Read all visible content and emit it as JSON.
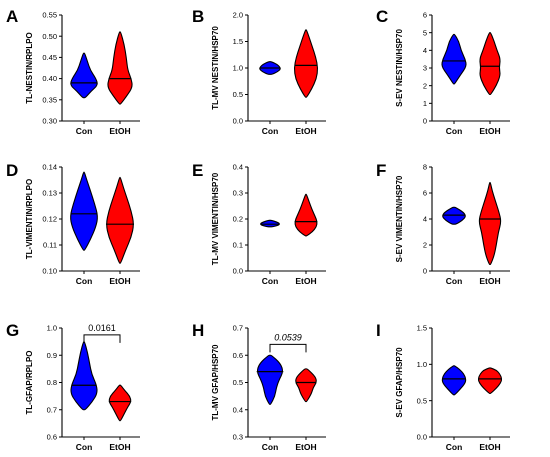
{
  "colors": {
    "con": "#0000ff",
    "etoh": "#ff0000",
    "axis": "#000000"
  },
  "chart_data": [
    {
      "panel": "A",
      "type": "violin",
      "ylabel": "TL-NESTIN/RPLPO",
      "categories": [
        "Con",
        "EtOH"
      ],
      "ylim": [
        0.3,
        0.55
      ],
      "yticks": [
        "0.30",
        "0.35",
        "0.40",
        "0.45",
        "0.50",
        "0.55"
      ],
      "tick_values": [
        0.3,
        0.35,
        0.4,
        0.45,
        0.5,
        0.55
      ],
      "series": [
        {
          "values": {
            "min": 0.355,
            "max": 0.46,
            "median": 0.39,
            "q1": 0.375,
            "q3": 0.41
          },
          "profile": [
            [
              0.355,
              0.1
            ],
            [
              0.37,
              0.5
            ],
            [
              0.385,
              1.0
            ],
            [
              0.4,
              0.85
            ],
            [
              0.42,
              0.45
            ],
            [
              0.44,
              0.25
            ],
            [
              0.46,
              0.05
            ]
          ]
        },
        {
          "values": {
            "min": 0.34,
            "max": 0.51,
            "median": 0.4,
            "q1": 0.37,
            "q3": 0.43
          },
          "profile": [
            [
              0.34,
              0.05
            ],
            [
              0.36,
              0.5
            ],
            [
              0.38,
              0.9
            ],
            [
              0.4,
              0.8
            ],
            [
              0.42,
              0.55
            ],
            [
              0.45,
              0.45
            ],
            [
              0.48,
              0.3
            ],
            [
              0.51,
              0.05
            ]
          ]
        }
      ],
      "bracket": null
    },
    {
      "panel": "B",
      "type": "violin",
      "ylabel": "TL-MV NESTIN/HSP70",
      "categories": [
        "Con",
        "EtOH"
      ],
      "ylim": [
        0.0,
        2.0
      ],
      "yticks": [
        "0.0",
        "0.5",
        "1.0",
        "1.5",
        "2.0"
      ],
      "tick_values": [
        0.0,
        0.5,
        1.0,
        1.5,
        2.0
      ],
      "series": [
        {
          "values": {
            "min": 0.88,
            "max": 1.12,
            "median": 1.0,
            "q1": 0.95,
            "q3": 1.05
          },
          "profile": [
            [
              0.88,
              0.15
            ],
            [
              0.93,
              0.55
            ],
            [
              0.98,
              0.75
            ],
            [
              1.02,
              0.7
            ],
            [
              1.07,
              0.5
            ],
            [
              1.12,
              0.1
            ]
          ]
        },
        {
          "values": {
            "min": 0.45,
            "max": 1.72,
            "median": 1.05,
            "q1": 0.85,
            "q3": 1.3
          },
          "profile": [
            [
              0.45,
              0.05
            ],
            [
              0.6,
              0.4
            ],
            [
              0.8,
              0.75
            ],
            [
              1.0,
              0.85
            ],
            [
              1.2,
              0.7
            ],
            [
              1.4,
              0.45
            ],
            [
              1.6,
              0.2
            ],
            [
              1.72,
              0.03
            ]
          ]
        }
      ],
      "bracket": null
    },
    {
      "panel": "C",
      "type": "violin",
      "ylabel": "S-EV NESTIN/HSP70",
      "categories": [
        "Con",
        "EtOH"
      ],
      "ylim": [
        0,
        6
      ],
      "yticks": [
        "0",
        "1",
        "2",
        "3",
        "4",
        "5",
        "6"
      ],
      "tick_values": [
        0,
        1,
        2,
        3,
        4,
        5,
        6
      ],
      "series": [
        {
          "values": {
            "min": 2.1,
            "max": 4.9,
            "median": 3.4,
            "q1": 3.0,
            "q3": 3.9
          },
          "profile": [
            [
              2.1,
              0.05
            ],
            [
              2.6,
              0.45
            ],
            [
              3.1,
              0.9
            ],
            [
              3.5,
              0.8
            ],
            [
              4.0,
              0.5
            ],
            [
              4.5,
              0.35
            ],
            [
              4.9,
              0.05
            ]
          ]
        },
        {
          "values": {
            "min": 1.5,
            "max": 5.0,
            "median": 3.1,
            "q1": 2.6,
            "q3": 3.7
          },
          "profile": [
            [
              1.5,
              0.05
            ],
            [
              2.0,
              0.45
            ],
            [
              2.6,
              0.75
            ],
            [
              3.0,
              0.65
            ],
            [
              3.5,
              0.75
            ],
            [
              4.0,
              0.5
            ],
            [
              4.5,
              0.3
            ],
            [
              5.0,
              0.05
            ]
          ]
        }
      ],
      "bracket": null
    },
    {
      "panel": "D",
      "type": "violin",
      "ylabel": "TL-VIMENTIN/RPLPO",
      "categories": [
        "Con",
        "EtOH"
      ],
      "ylim": [
        0.1,
        0.14
      ],
      "yticks": [
        "0.10",
        "0.11",
        "0.12",
        "0.13",
        "0.14"
      ],
      "tick_values": [
        0.1,
        0.11,
        0.12,
        0.13,
        0.14
      ],
      "series": [
        {
          "values": {
            "min": 0.108,
            "max": 0.138,
            "median": 0.122,
            "q1": 0.116,
            "q3": 0.127
          },
          "profile": [
            [
              0.108,
              0.05
            ],
            [
              0.112,
              0.45
            ],
            [
              0.117,
              0.85
            ],
            [
              0.121,
              1.0
            ],
            [
              0.126,
              0.75
            ],
            [
              0.131,
              0.45
            ],
            [
              0.135,
              0.2
            ],
            [
              0.138,
              0.03
            ]
          ]
        },
        {
          "values": {
            "min": 0.103,
            "max": 0.136,
            "median": 0.118,
            "q1": 0.112,
            "q3": 0.125
          },
          "profile": [
            [
              0.103,
              0.05
            ],
            [
              0.108,
              0.4
            ],
            [
              0.113,
              0.8
            ],
            [
              0.118,
              1.0
            ],
            [
              0.123,
              0.8
            ],
            [
              0.128,
              0.5
            ],
            [
              0.132,
              0.25
            ],
            [
              0.136,
              0.03
            ]
          ]
        }
      ],
      "bracket": null
    },
    {
      "panel": "E",
      "type": "violin",
      "ylabel": "TL-MV VIMENTIN/HSP70",
      "categories": [
        "Con",
        "EtOH"
      ],
      "ylim": [
        0.0,
        0.4
      ],
      "yticks": [
        "0.0",
        "0.1",
        "0.2",
        "0.3",
        "0.4"
      ],
      "tick_values": [
        0.0,
        0.1,
        0.2,
        0.3,
        0.4
      ],
      "series": [
        {
          "values": {
            "min": 0.17,
            "max": 0.195,
            "median": 0.18,
            "q1": 0.176,
            "q3": 0.185
          },
          "profile": [
            [
              0.17,
              0.2
            ],
            [
              0.176,
              0.6
            ],
            [
              0.182,
              0.7
            ],
            [
              0.188,
              0.5
            ],
            [
              0.195,
              0.1
            ]
          ]
        },
        {
          "values": {
            "min": 0.135,
            "max": 0.295,
            "median": 0.19,
            "q1": 0.17,
            "q3": 0.22
          },
          "profile": [
            [
              0.135,
              0.05
            ],
            [
              0.15,
              0.45
            ],
            [
              0.17,
              0.75
            ],
            [
              0.19,
              0.8
            ],
            [
              0.21,
              0.65
            ],
            [
              0.24,
              0.4
            ],
            [
              0.27,
              0.2
            ],
            [
              0.295,
              0.03
            ]
          ]
        }
      ],
      "bracket": null
    },
    {
      "panel": "F",
      "type": "violin",
      "ylabel": "S-EV VIMENTIN/HSP70",
      "categories": [
        "Con",
        "EtOH"
      ],
      "ylim": [
        0,
        8
      ],
      "yticks": [
        "0",
        "2",
        "4",
        "6",
        "8"
      ],
      "tick_values": [
        0,
        2,
        4,
        6,
        8
      ],
      "series": [
        {
          "values": {
            "min": 3.6,
            "max": 4.9,
            "median": 4.3,
            "q1": 4.1,
            "q3": 4.5
          },
          "profile": [
            [
              3.6,
              0.15
            ],
            [
              3.9,
              0.6
            ],
            [
              4.2,
              0.85
            ],
            [
              4.5,
              0.7
            ],
            [
              4.9,
              0.1
            ]
          ]
        },
        {
          "values": {
            "min": 0.5,
            "max": 6.8,
            "median": 4.0,
            "q1": 2.8,
            "q3": 4.8
          },
          "profile": [
            [
              0.5,
              0.05
            ],
            [
              1.2,
              0.3
            ],
            [
              2.0,
              0.45
            ],
            [
              3.0,
              0.6
            ],
            [
              3.8,
              0.8
            ],
            [
              4.5,
              0.65
            ],
            [
              5.5,
              0.35
            ],
            [
              6.2,
              0.15
            ],
            [
              6.8,
              0.03
            ]
          ]
        }
      ],
      "bracket": null
    },
    {
      "panel": "G",
      "type": "violin",
      "ylabel": "TL-GFAP/RPLPO",
      "categories": [
        "Con",
        "EtOH"
      ],
      "ylim": [
        0.6,
        1.0
      ],
      "yticks": [
        "0.6",
        "0.7",
        "0.8",
        "0.9",
        "1.0"
      ],
      "tick_values": [
        0.6,
        0.7,
        0.8,
        0.9,
        1.0
      ],
      "series": [
        {
          "values": {
            "min": 0.7,
            "max": 0.95,
            "median": 0.79,
            "q1": 0.75,
            "q3": 0.84
          },
          "profile": [
            [
              0.7,
              0.1
            ],
            [
              0.73,
              0.6
            ],
            [
              0.76,
              0.95
            ],
            [
              0.79,
              0.9
            ],
            [
              0.83,
              0.55
            ],
            [
              0.87,
              0.4
            ],
            [
              0.91,
              0.25
            ],
            [
              0.95,
              0.04
            ]
          ]
        },
        {
          "values": {
            "min": 0.66,
            "max": 0.79,
            "median": 0.73,
            "q1": 0.71,
            "q3": 0.75
          },
          "profile": [
            [
              0.66,
              0.05
            ],
            [
              0.69,
              0.35
            ],
            [
              0.71,
              0.55
            ],
            [
              0.73,
              0.8
            ],
            [
              0.75,
              0.7
            ],
            [
              0.77,
              0.35
            ],
            [
              0.79,
              0.05
            ]
          ]
        }
      ],
      "bracket": {
        "label": "0.0161",
        "y": 0.975,
        "italic": false
      }
    },
    {
      "panel": "H",
      "type": "violin",
      "ylabel": "TL-MV GFAP/HSP70",
      "categories": [
        "Con",
        "EtOH"
      ],
      "ylim": [
        0.3,
        0.7
      ],
      "yticks": [
        "0.3",
        "0.4",
        "0.5",
        "0.6",
        "0.7"
      ],
      "tick_values": [
        0.3,
        0.4,
        0.5,
        0.6,
        0.7
      ],
      "series": [
        {
          "values": {
            "min": 0.42,
            "max": 0.6,
            "median": 0.54,
            "q1": 0.5,
            "q3": 0.57
          },
          "profile": [
            [
              0.42,
              0.05
            ],
            [
              0.45,
              0.35
            ],
            [
              0.48,
              0.45
            ],
            [
              0.51,
              0.65
            ],
            [
              0.54,
              0.95
            ],
            [
              0.57,
              0.75
            ],
            [
              0.6,
              0.1
            ]
          ]
        },
        {
          "values": {
            "min": 0.43,
            "max": 0.55,
            "median": 0.5,
            "q1": 0.47,
            "q3": 0.52
          },
          "profile": [
            [
              0.43,
              0.05
            ],
            [
              0.46,
              0.4
            ],
            [
              0.48,
              0.5
            ],
            [
              0.5,
              0.75
            ],
            [
              0.52,
              0.7
            ],
            [
              0.55,
              0.1
            ]
          ]
        }
      ],
      "bracket": {
        "label": "0.0539",
        "y": 0.64,
        "italic": true
      }
    },
    {
      "panel": "I",
      "type": "violin",
      "ylabel": "S-EV GFAP/HSP70",
      "categories": [
        "Con",
        "EtOH"
      ],
      "ylim": [
        0.0,
        1.5
      ],
      "yticks": [
        "0.0",
        "0.5",
        "1.0",
        "1.5"
      ],
      "tick_values": [
        0.0,
        0.5,
        1.0,
        1.5
      ],
      "series": [
        {
          "values": {
            "min": 0.58,
            "max": 0.98,
            "median": 0.8,
            "q1": 0.72,
            "q3": 0.88
          },
          "profile": [
            [
              0.58,
              0.05
            ],
            [
              0.66,
              0.45
            ],
            [
              0.74,
              0.8
            ],
            [
              0.8,
              0.85
            ],
            [
              0.87,
              0.7
            ],
            [
              0.93,
              0.4
            ],
            [
              0.98,
              0.05
            ]
          ]
        },
        {
          "values": {
            "min": 0.6,
            "max": 0.95,
            "median": 0.8,
            "q1": 0.72,
            "q3": 0.87
          },
          "profile": [
            [
              0.6,
              0.05
            ],
            [
              0.67,
              0.45
            ],
            [
              0.74,
              0.75
            ],
            [
              0.8,
              0.85
            ],
            [
              0.87,
              0.7
            ],
            [
              0.92,
              0.45
            ],
            [
              0.95,
              0.05
            ]
          ]
        }
      ],
      "bracket": null
    }
  ]
}
